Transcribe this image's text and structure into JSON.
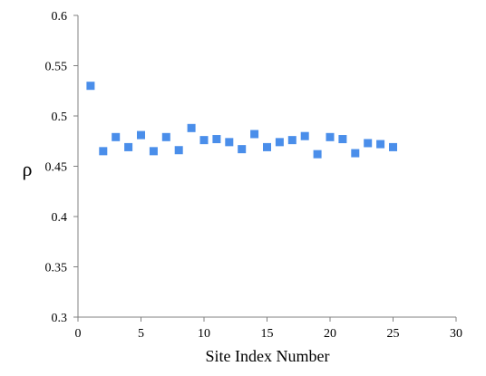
{
  "chart_data": {
    "type": "scatter",
    "xlabel": "Site Index Number",
    "ylabel": "ρ",
    "xlim": [
      0,
      30
    ],
    "ylim": [
      0.3,
      0.6
    ],
    "x_ticks": [
      0,
      5,
      10,
      15,
      20,
      25,
      30
    ],
    "y_ticks": [
      0.3,
      0.35,
      0.4,
      0.45,
      0.5,
      0.55,
      0.6
    ],
    "x_tick_labels": [
      "0",
      "5",
      "10",
      "15",
      "20",
      "25",
      "30"
    ],
    "y_tick_labels": [
      "0.3",
      "0.35",
      "0.4",
      "0.45",
      "0.5",
      "0.55",
      "0.6"
    ],
    "grid": false,
    "marker": "square",
    "marker_color": "#4a8eea",
    "series": [
      {
        "x": [
          1,
          2,
          3,
          4,
          5,
          6,
          7,
          8,
          9,
          10,
          11,
          12,
          13,
          14,
          15,
          16,
          17,
          18,
          19,
          20,
          21,
          22,
          23,
          24,
          25
        ],
        "y": [
          0.53,
          0.465,
          0.479,
          0.469,
          0.481,
          0.465,
          0.479,
          0.466,
          0.488,
          0.476,
          0.477,
          0.474,
          0.467,
          0.482,
          0.469,
          0.474,
          0.476,
          0.48,
          0.462,
          0.479,
          0.477,
          0.463,
          0.473,
          0.472,
          0.469
        ]
      }
    ]
  }
}
